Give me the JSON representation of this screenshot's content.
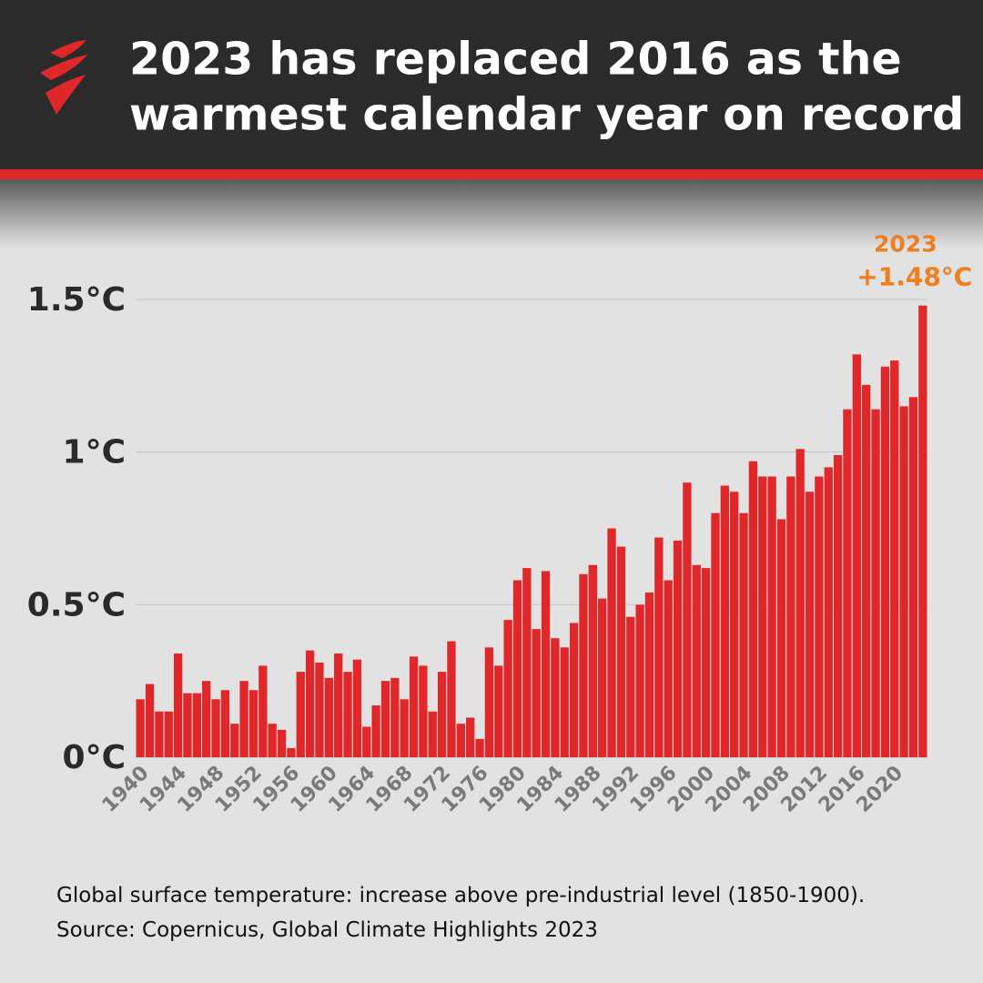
{
  "chart_data": {
    "type": "bar",
    "title": [
      "2023 has replaced 2016 as the",
      "warmest calendar year on record"
    ],
    "caption": "Global surface temperature: increase above pre-industrial level (1850-1900). Source: Copernicus, Global Climate Highlights 2023",
    "annotation": "2023",
    "categories": [
      "1940",
      null,
      null,
      null,
      "1944",
      null,
      null,
      null,
      "1948",
      null,
      null,
      null,
      "1952",
      null,
      null,
      null,
      "1956",
      null,
      null,
      null,
      "1960",
      null,
      null,
      null,
      "1964",
      null,
      null,
      null,
      "1968",
      null,
      null,
      null,
      "1972",
      null,
      null,
      null,
      "1976",
      null,
      null,
      null,
      "1980",
      null,
      null,
      null,
      "1984",
      null,
      null,
      null,
      "1988",
      null,
      null,
      null,
      "1992",
      null,
      null,
      null,
      "1996",
      null,
      null,
      null,
      "2000",
      null,
      null,
      null,
      "2004",
      null,
      null,
      null,
      "2008",
      null,
      null,
      null,
      "2012",
      null,
      null,
      null,
      "2016",
      null,
      null,
      null,
      "2020",
      null,
      null,
      null
    ],
    "values": [
      0.19,
      0.24,
      0.15,
      0.15,
      0.34,
      0.21,
      0.21,
      0.25,
      0.19,
      0.22,
      0.11,
      0.25,
      0.22,
      0.3,
      0.11,
      0.09,
      0.03,
      0.28,
      0.35,
      0.31,
      0.26,
      0.34,
      0.28,
      0.32,
      0.1,
      0.17,
      0.25,
      0.26,
      0.19,
      0.33,
      0.3,
      0.15,
      0.28,
      0.38,
      0.11,
      0.13,
      0.06,
      0.36,
      0.3,
      0.45,
      0.58,
      0.62,
      0.42,
      0.61,
      0.39,
      0.36,
      0.44,
      0.6,
      0.63,
      0.52,
      0.75,
      0.69,
      0.46,
      0.5,
      0.54,
      0.72,
      0.58,
      0.71,
      0.9,
      0.63,
      0.62,
      0.8,
      0.89,
      0.87,
      0.8,
      0.97,
      0.92,
      0.92,
      0.78,
      0.92,
      1.01,
      0.87,
      0.92,
      0.95,
      0.99,
      1.14,
      1.32,
      1.22,
      1.14,
      1.28,
      1.3,
      1.15,
      1.18,
      1.48
    ],
    "value_labels": [
      null,
      null,
      null,
      null,
      null,
      null,
      null,
      null,
      null,
      null,
      null,
      null,
      null,
      null,
      null,
      null,
      null,
      null,
      null,
      null,
      null,
      null,
      null,
      null,
      null,
      null,
      null,
      null,
      null,
      null,
      null,
      null,
      null,
      null,
      null,
      null,
      null,
      null,
      null,
      null,
      null,
      null,
      null,
      null,
      null,
      null,
      null,
      null,
      null,
      null,
      null,
      null,
      null,
      null,
      null,
      null,
      null,
      null,
      null,
      null,
      null,
      null,
      null,
      null,
      null,
      null,
      null,
      null,
      null,
      null,
      null,
      null,
      null,
      null,
      null,
      null,
      null,
      null,
      null,
      null,
      null,
      null,
      null,
      "+1.48°C"
    ],
    "color": "#e0282a",
    "ylim": [
      0,
      1.5
    ],
    "yticks": [
      {
        "value": 0,
        "label": "0°C"
      },
      {
        "value": 0.5,
        "label": "0.5°C"
      },
      {
        "value": 1,
        "label": "1°C"
      },
      {
        "value": 1.5,
        "label": "1.5°C"
      }
    ],
    "grid": true
  }
}
